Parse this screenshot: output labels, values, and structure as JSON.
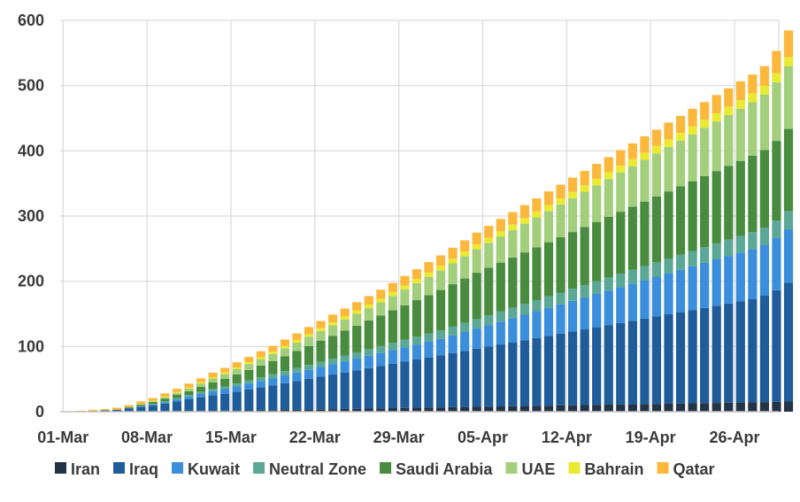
{
  "chart_data": {
    "type": "bar",
    "stacked": true,
    "title": "",
    "xlabel": "",
    "ylabel": "",
    "ylim": [
      0,
      600
    ],
    "yticks": [
      0,
      100,
      200,
      300,
      400,
      500,
      600
    ],
    "grid": true,
    "legend_position": "bottom",
    "x_tick_labels": [
      "01-Mar",
      "08-Mar",
      "15-Mar",
      "22-Mar",
      "29-Mar",
      "05-Apr",
      "12-Apr",
      "19-Apr",
      "26-Apr"
    ],
    "categories": [
      "01-Mar",
      "02-Mar",
      "03-Mar",
      "04-Mar",
      "05-Mar",
      "06-Mar",
      "07-Mar",
      "08-Mar",
      "09-Mar",
      "10-Mar",
      "11-Mar",
      "12-Mar",
      "13-Mar",
      "14-Mar",
      "15-Mar",
      "16-Mar",
      "17-Mar",
      "18-Mar",
      "19-Mar",
      "20-Mar",
      "21-Mar",
      "22-Mar",
      "23-Mar",
      "24-Mar",
      "25-Mar",
      "26-Mar",
      "27-Mar",
      "28-Mar",
      "29-Mar",
      "30-Mar",
      "31-Mar",
      "01-Apr",
      "02-Apr",
      "03-Apr",
      "04-Apr",
      "05-Apr",
      "06-Apr",
      "07-Apr",
      "08-Apr",
      "09-Apr",
      "10-Apr",
      "11-Apr",
      "12-Apr",
      "13-Apr",
      "14-Apr",
      "15-Apr",
      "16-Apr",
      "17-Apr",
      "18-Apr",
      "19-Apr",
      "20-Apr",
      "21-Apr",
      "22-Apr",
      "23-Apr",
      "24-Apr",
      "25-Apr",
      "26-Apr",
      "27-Apr",
      "28-Apr",
      "29-Apr",
      "30-Apr"
    ],
    "series": [
      {
        "name": "Iran",
        "color": "#243447",
        "values": [
          0,
          0,
          0,
          0,
          0,
          0.2,
          0.3,
          0.4,
          0.6,
          0.8,
          1,
          1.2,
          1.4,
          1.6,
          1.8,
          2,
          2.2,
          2.4,
          2.7,
          3,
          3.3,
          3.6,
          3.9,
          4.2,
          4.5,
          4.8,
          5.1,
          5.4,
          5.7,
          6,
          6.3,
          6.6,
          6.9,
          7.2,
          7.5,
          7.8,
          8.1,
          8.4,
          8.7,
          9,
          9.3,
          9.6,
          9.9,
          10.2,
          10.5,
          10.8,
          11.1,
          11.4,
          11.7,
          12,
          12.3,
          12.6,
          12.9,
          13.2,
          13.5,
          13.8,
          14.1,
          14.4,
          14.8,
          15.2,
          15.6
        ]
      },
      {
        "name": "Iraq",
        "color": "#1f5c99",
        "values": [
          0,
          0.5,
          1,
          2,
          3,
          5,
          7,
          9,
          12,
          15,
          18,
          21,
          24,
          26,
          29,
          32,
          35,
          38,
          41,
          44,
          47,
          50,
          53,
          56,
          59,
          62,
          65,
          68,
          71,
          74,
          77,
          80,
          83,
          86,
          89,
          92,
          95,
          98,
          101,
          104,
          107,
          110,
          113,
          116,
          119,
          122,
          125,
          128,
          131,
          134,
          137,
          140,
          143,
          146,
          149,
          152,
          155,
          158,
          163,
          171,
          182
        ]
      },
      {
        "name": "Kuwait",
        "color": "#3a8edb",
        "values": [
          0,
          0,
          0,
          0,
          0,
          0.6,
          1,
          1.5,
          2,
          3,
          4,
          5,
          6,
          7,
          8,
          9,
          10,
          11,
          12,
          13,
          14,
          15,
          16,
          17,
          18,
          19,
          20,
          21,
          22,
          23,
          24,
          25,
          27,
          29,
          31,
          33,
          35,
          37,
          39,
          41,
          43,
          45,
          47,
          49,
          51,
          53,
          55,
          57,
          59,
          61,
          63,
          65,
          67,
          69,
          71,
          73,
          75,
          77,
          78,
          80,
          82
        ]
      },
      {
        "name": "Neutral Zone",
        "color": "#5ba896",
        "values": [
          0,
          0,
          0,
          0,
          0,
          0,
          0.5,
          1,
          1.5,
          2,
          2.5,
          3,
          3.5,
          4,
          4.5,
          5,
          5.5,
          6,
          6.5,
          7,
          7.5,
          8,
          8.5,
          9,
          9.5,
          10,
          10.5,
          11,
          11.5,
          12,
          12.5,
          13,
          13.5,
          14,
          14.5,
          15,
          15.5,
          16,
          16.5,
          17,
          17.5,
          18,
          18.5,
          19,
          19.5,
          20,
          20.5,
          21,
          21.5,
          22,
          22.5,
          23,
          23.5,
          24,
          24.5,
          25,
          25.5,
          26,
          26.5,
          27,
          28
        ]
      },
      {
        "name": "Saudi Arabia",
        "color": "#4a8c3f",
        "values": [
          0,
          0,
          0,
          0,
          0,
          1,
          2,
          3,
          4,
          5,
          6,
          8,
          10,
          12,
          14,
          16,
          18,
          20,
          23,
          26,
          29,
          32,
          35,
          38,
          41,
          44,
          47,
          50,
          53,
          56,
          59,
          62,
          65,
          68,
          71,
          73,
          75,
          77,
          79,
          81,
          83,
          85,
          87,
          89,
          91,
          93,
          95,
          97,
          99,
          101,
          103,
          105,
          107,
          109,
          111,
          113,
          115,
          117,
          119,
          122,
          126
        ]
      },
      {
        "name": "UAE",
        "color": "#a3cf7d",
        "values": [
          0,
          0,
          0,
          0,
          0,
          0,
          0.5,
          1,
          2,
          3,
          4,
          5,
          6,
          7,
          8,
          9,
          10,
          11,
          12,
          13,
          14,
          15,
          16,
          17,
          18,
          19,
          20,
          22,
          24,
          26,
          28,
          30,
          32,
          34,
          36,
          38,
          40,
          42,
          44,
          46,
          48,
          50,
          52,
          54,
          56,
          58,
          60,
          62,
          64,
          66,
          68,
          70,
          72,
          74,
          76,
          78,
          80,
          82,
          85,
          90,
          96
        ]
      },
      {
        "name": "Bahrain",
        "color": "#eaea33",
        "values": [
          0,
          0,
          0,
          0,
          0,
          0.3,
          0.5,
          1,
          1,
          1.5,
          1.5,
          2,
          2,
          2.5,
          2.5,
          3,
          3,
          3.5,
          3.5,
          4,
          4,
          4.5,
          4.5,
          5,
          5,
          5.5,
          5.5,
          6,
          6,
          6.5,
          6.5,
          7,
          7,
          7.5,
          7.5,
          8,
          8,
          8.5,
          8.5,
          9,
          9,
          9.5,
          9.5,
          10,
          10,
          10.5,
          10.5,
          11,
          11,
          11.5,
          11.5,
          12,
          12,
          12.5,
          12.5,
          13,
          13,
          13.5,
          13.5,
          14,
          14
        ]
      },
      {
        "name": "Qatar",
        "color": "#fbb83c",
        "values": [
          0,
          1,
          2,
          2,
          3,
          3,
          4,
          4,
          5,
          5,
          6,
          6,
          7,
          7,
          8,
          8,
          9,
          9,
          10,
          10,
          11,
          11,
          12,
          12,
          13,
          13,
          14,
          14,
          15,
          15,
          16,
          16,
          17,
          17,
          18,
          18,
          19,
          19,
          20,
          20,
          21,
          21,
          22,
          22,
          23,
          23,
          24,
          24,
          25,
          25,
          26,
          26,
          27,
          27,
          28,
          28,
          29,
          29,
          30,
          34,
          41
        ]
      }
    ]
  }
}
